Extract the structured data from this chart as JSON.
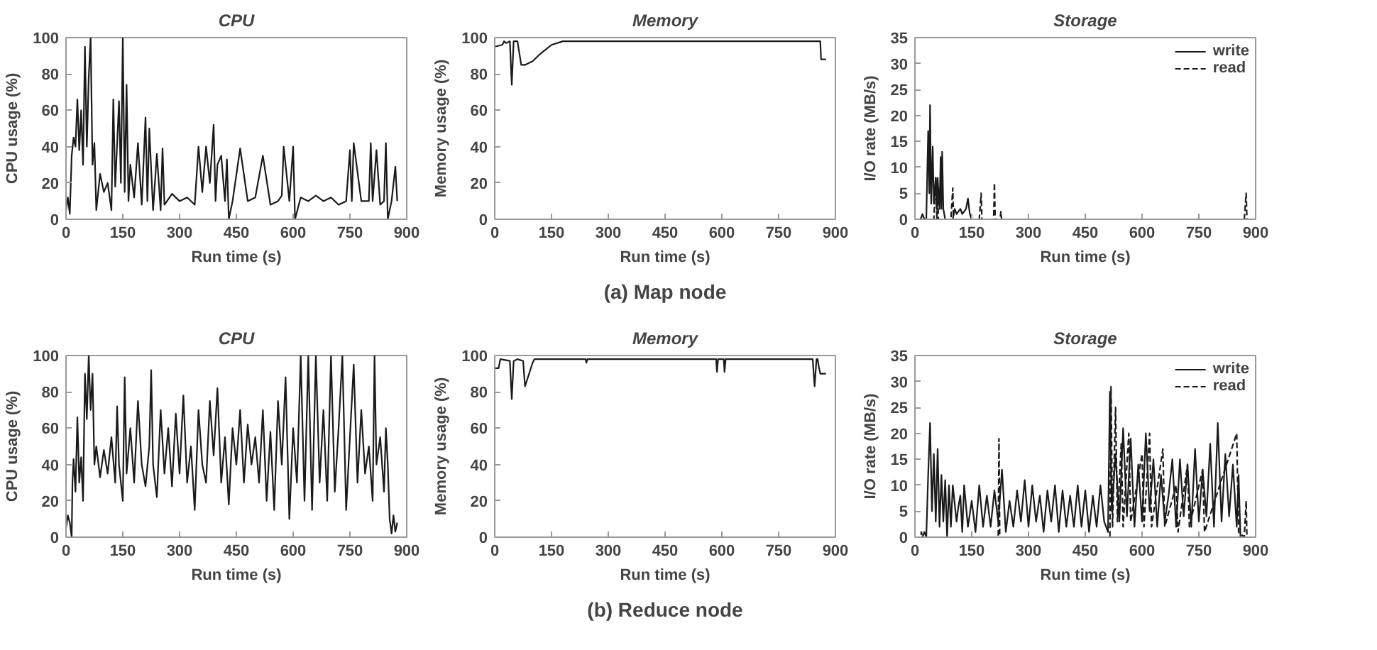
{
  "chart_data": [
    {
      "type": "line",
      "title": "CPU",
      "xlabel": "Run time (s)",
      "ylabel": "CPU usage (%)",
      "xlim": [
        0,
        900
      ],
      "xticks": [
        0,
        150,
        300,
        450,
        600,
        750,
        900
      ],
      "ylim": [
        0,
        100
      ],
      "yticks": [
        0,
        20,
        40,
        60,
        80,
        100
      ],
      "grid": false,
      "legend": false,
      "series": [
        {
          "color": "#1a1a1a",
          "line_style": "solid",
          "x": [
            0,
            5,
            10,
            15,
            20,
            25,
            30,
            35,
            40,
            45,
            50,
            55,
            60,
            65,
            70,
            75,
            80,
            90,
            100,
            110,
            120,
            125,
            130,
            140,
            145,
            150,
            155,
            160,
            165,
            170,
            180,
            190,
            200,
            210,
            215,
            220,
            230,
            240,
            250,
            255,
            260,
            280,
            300,
            320,
            340,
            350,
            360,
            370,
            380,
            390,
            395,
            400,
            410,
            420,
            425,
            430,
            440,
            460,
            480,
            500,
            520,
            540,
            560,
            570,
            575,
            590,
            600,
            605,
            620,
            640,
            660,
            680,
            700,
            720,
            740,
            750,
            755,
            760,
            780,
            800,
            805,
            810,
            820,
            830,
            840,
            845,
            850,
            860,
            870,
            875
          ],
          "values": [
            5,
            12,
            3,
            35,
            45,
            40,
            66,
            38,
            60,
            30,
            95,
            40,
            78,
            100,
            30,
            42,
            5,
            25,
            15,
            20,
            5,
            66,
            18,
            65,
            20,
            100,
            15,
            74,
            10,
            30,
            12,
            42,
            8,
            56,
            10,
            50,
            5,
            36,
            5,
            39,
            8,
            14,
            10,
            12,
            8,
            40,
            15,
            40,
            20,
            52,
            10,
            30,
            35,
            10,
            33,
            0,
            10,
            39,
            10,
            12,
            35,
            8,
            10,
            13,
            40,
            10,
            40,
            0,
            12,
            10,
            13,
            10,
            12,
            8,
            10,
            38,
            10,
            42,
            10,
            10,
            42,
            10,
            38,
            8,
            10,
            42,
            0,
            10,
            29,
            10
          ]
        }
      ]
    },
    {
      "type": "line",
      "title": "Memory",
      "xlabel": "Run time (s)",
      "ylabel": "Memory usage (%)",
      "xlim": [
        0,
        900
      ],
      "xticks": [
        0,
        150,
        300,
        450,
        600,
        750,
        900
      ],
      "ylim": [
        0,
        100
      ],
      "yticks": [
        0,
        20,
        40,
        60,
        80,
        100
      ],
      "grid": false,
      "legend": false,
      "annotations": [
        "(a) Map node"
      ],
      "series": [
        {
          "color": "#1a1a1a",
          "line_style": "solid",
          "x": [
            0,
            20,
            25,
            30,
            40,
            45,
            50,
            60,
            70,
            80,
            100,
            120,
            150,
            180,
            300,
            860,
            862,
            875
          ],
          "values": [
            95,
            96,
            98,
            97,
            98,
            74,
            98,
            98,
            85,
            85,
            87,
            91,
            96,
            98,
            98,
            98,
            88,
            88
          ]
        }
      ]
    },
    {
      "type": "line",
      "title": "Storage",
      "xlabel": "Run time (s)",
      "ylabel": "I/O rate (MB/s)",
      "xlim": [
        0,
        900
      ],
      "xticks": [
        0,
        150,
        300,
        450,
        600,
        750,
        900
      ],
      "ylim": [
        0,
        35
      ],
      "yticks": [
        0,
        5,
        10,
        15,
        20,
        25,
        30,
        35
      ],
      "grid": false,
      "legend": "top right",
      "series": [
        {
          "name": "write",
          "color": "#1a1a1a",
          "line_style": "solid",
          "x": [
            0,
            15,
            20,
            25,
            30,
            35,
            38,
            40,
            43,
            47,
            50,
            55,
            58,
            60,
            65,
            68,
            70,
            72,
            75,
            80,
            100,
            105,
            110,
            120,
            125,
            135,
            140,
            145,
            150,
            875
          ],
          "values": [
            0,
            0,
            1,
            0,
            0,
            17,
            5,
            22,
            3,
            14,
            3,
            8,
            2,
            8,
            2,
            12,
            2,
            13,
            2,
            0,
            0,
            2,
            1,
            2,
            1,
            2,
            4,
            1,
            0,
            0
          ]
        },
        {
          "name": "read",
          "color": "#1a1a1a",
          "line_style": "dashed",
          "x": [
            0,
            50,
            55,
            58,
            60,
            62,
            95,
            100,
            102,
            170,
            175,
            177,
            208,
            210,
            212,
            225,
            227,
            229,
            870,
            875,
            877
          ],
          "values": [
            0,
            0,
            8,
            0,
            6,
            0,
            0,
            6,
            0,
            0,
            5,
            0,
            0,
            7,
            0,
            0,
            1.5,
            0,
            0,
            5,
            0
          ]
        }
      ]
    },
    {
      "type": "line",
      "title": "CPU",
      "xlabel": "Run time (s)",
      "ylabel": "CPU usage (%)",
      "xlim": [
        0,
        900
      ],
      "xticks": [
        0,
        150,
        300,
        450,
        600,
        750,
        900
      ],
      "ylim": [
        0,
        100
      ],
      "yticks": [
        0,
        20,
        40,
        60,
        80,
        100
      ],
      "grid": false,
      "legend": false,
      "series": [
        {
          "color": "#1a1a1a",
          "line_style": "solid",
          "x": [
            0,
            5,
            10,
            15,
            17,
            20,
            25,
            30,
            35,
            40,
            45,
            50,
            55,
            60,
            65,
            70,
            75,
            80,
            90,
            100,
            110,
            120,
            130,
            135,
            140,
            150,
            155,
            160,
            170,
            180,
            190,
            200,
            210,
            220,
            225,
            230,
            240,
            250,
            260,
            270,
            280,
            290,
            300,
            310,
            320,
            330,
            340,
            350,
            360,
            370,
            380,
            390,
            400,
            410,
            420,
            430,
            440,
            450,
            460,
            470,
            480,
            490,
            500,
            510,
            520,
            530,
            540,
            550,
            560,
            570,
            580,
            590,
            600,
            610,
            620,
            630,
            640,
            650,
            660,
            670,
            680,
            690,
            700,
            710,
            720,
            730,
            740,
            750,
            760,
            770,
            780,
            790,
            800,
            810,
            815,
            820,
            830,
            840,
            845,
            850,
            855,
            860,
            865,
            870,
            875
          ],
          "values": [
            5,
            12,
            8,
            0,
            30,
            43,
            25,
            66,
            30,
            44,
            20,
            90,
            65,
            100,
            70,
            90,
            40,
            50,
            33,
            48,
            35,
            55,
            30,
            72,
            40,
            20,
            88,
            35,
            60,
            30,
            75,
            40,
            28,
            50,
            92,
            40,
            22,
            70,
            35,
            60,
            28,
            68,
            35,
            78,
            30,
            50,
            15,
            70,
            40,
            30,
            75,
            45,
            82,
            30,
            55,
            18,
            60,
            40,
            70,
            30,
            62,
            40,
            55,
            30,
            70,
            20,
            58,
            15,
            75,
            40,
            88,
            10,
            60,
            30,
            100,
            20,
            100,
            15,
            100,
            30,
            70,
            20,
            100,
            25,
            60,
            100,
            15,
            55,
            95,
            30,
            70,
            35,
            50,
            20,
            100,
            40,
            55,
            25,
            60,
            40,
            10,
            2,
            12,
            3,
            8
          ]
        }
      ]
    },
    {
      "type": "line",
      "title": "Memory",
      "xlabel": "Run time (s)",
      "ylabel": "Memory usage (%)",
      "xlim": [
        0,
        900
      ],
      "xticks": [
        0,
        150,
        300,
        450,
        600,
        750,
        900
      ],
      "ylim": [
        0,
        100
      ],
      "yticks": [
        0,
        20,
        40,
        60,
        80,
        100
      ],
      "grid": false,
      "legend": false,
      "annotations": [
        "(b) Reduce node"
      ],
      "series": [
        {
          "color": "#1a1a1a",
          "line_style": "solid",
          "x": [
            0,
            10,
            15,
            40,
            45,
            50,
            60,
            75,
            80,
            100,
            105,
            240,
            242,
            245,
            585,
            587,
            590,
            605,
            607,
            610,
            840,
            845,
            850,
            853,
            856,
            860,
            875
          ],
          "values": [
            93,
            93,
            98,
            97,
            76,
            97,
            98,
            97,
            83,
            96,
            98,
            98,
            96,
            98,
            98,
            91,
            98,
            98,
            91,
            98,
            98,
            83,
            98,
            98,
            94,
            90,
            90
          ]
        }
      ]
    },
    {
      "type": "line",
      "title": "Storage",
      "xlabel": "Run time (s)",
      "ylabel": "I/O rate (MB/s)",
      "xlim": [
        0,
        900
      ],
      "xticks": [
        0,
        150,
        300,
        450,
        600,
        750,
        900
      ],
      "ylim": [
        0,
        35
      ],
      "yticks": [
        0,
        5,
        10,
        15,
        20,
        25,
        30,
        35
      ],
      "grid": false,
      "legend": "top right",
      "series": [
        {
          "name": "write",
          "color": "#1a1a1a",
          "line_style": "solid",
          "x": [
            0,
            20,
            25,
            30,
            35,
            40,
            45,
            50,
            55,
            60,
            65,
            70,
            75,
            80,
            85,
            90,
            95,
            100,
            110,
            115,
            120,
            125,
            130,
            140,
            150,
            160,
            170,
            180,
            190,
            200,
            210,
            220,
            230,
            240,
            250,
            260,
            270,
            280,
            290,
            300,
            310,
            320,
            330,
            340,
            350,
            360,
            370,
            380,
            390,
            400,
            410,
            420,
            430,
            440,
            450,
            460,
            470,
            480,
            490,
            500,
            510,
            515,
            520,
            530,
            540,
            550,
            560,
            570,
            580,
            590,
            600,
            610,
            620,
            630,
            640,
            650,
            660,
            670,
            680,
            690,
            700,
            710,
            720,
            730,
            740,
            750,
            760,
            770,
            780,
            790,
            800,
            810,
            820,
            830,
            840,
            850,
            855,
            860,
            875
          ],
          "values": [
            0,
            0,
            1,
            0,
            12,
            22,
            5,
            16,
            3,
            17,
            2,
            12,
            3,
            11,
            0,
            10,
            2,
            10,
            3,
            6,
            8,
            1,
            10,
            2,
            7,
            1,
            10,
            2,
            8,
            2,
            9,
            3,
            13,
            1,
            7,
            2,
            9,
            3,
            11,
            2,
            10,
            3,
            8,
            1,
            9,
            3,
            10,
            1,
            9,
            2,
            8,
            2,
            10,
            2,
            9,
            1,
            8,
            2,
            10,
            3,
            1,
            28,
            5,
            16,
            3,
            21,
            4,
            19,
            2,
            14,
            3,
            20,
            5,
            15,
            2,
            12,
            3,
            8,
            15,
            2,
            15,
            4,
            14,
            2,
            17,
            3,
            13,
            4,
            18,
            2,
            22,
            3,
            16,
            4,
            14,
            2,
            12,
            0,
            0
          ]
        },
        {
          "name": "read",
          "color": "#1a1a1a",
          "line_style": "dashed",
          "x": [
            0,
            15,
            17,
            19,
            220,
            222,
            224,
            515,
            518,
            522,
            530,
            535,
            545,
            550,
            565,
            570,
            600,
            605,
            620,
            625,
            655,
            660,
            690,
            695,
            720,
            725,
            760,
            765,
            850,
            855,
            870,
            875,
            877
          ],
          "values": [
            0,
            0,
            1,
            0,
            0,
            19,
            0,
            0,
            29,
            2,
            25,
            3,
            18,
            2,
            20,
            3,
            16,
            2,
            20,
            2,
            17,
            2,
            10,
            1,
            14,
            2,
            13,
            1,
            20,
            1,
            0,
            7,
            0
          ]
        }
      ]
    }
  ]
}
